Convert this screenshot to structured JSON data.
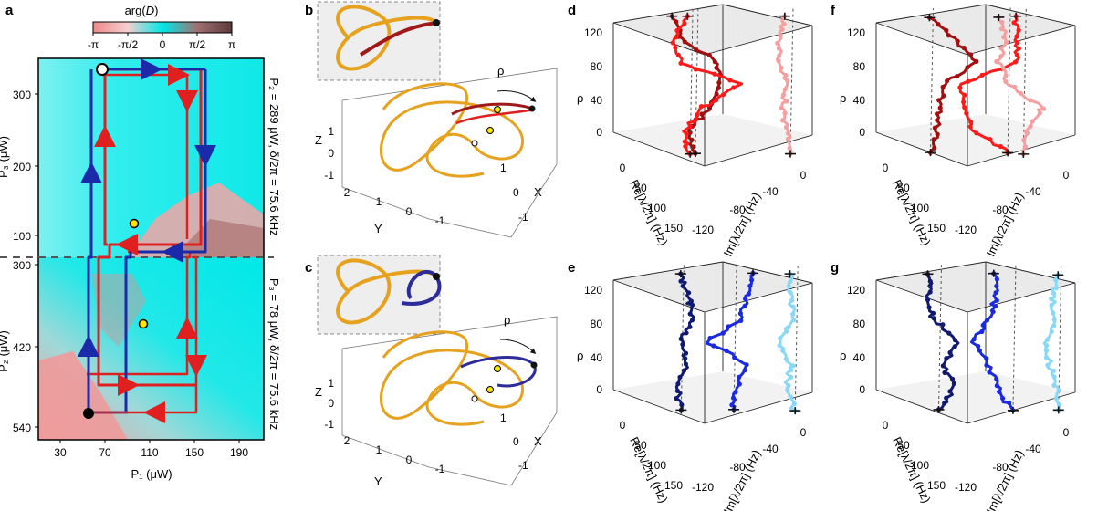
{
  "panels": {
    "a": "a",
    "b": "b",
    "c": "c",
    "d": "d",
    "e": "e",
    "f": "f",
    "g": "g"
  },
  "colorbar": {
    "title_prefix": "arg(",
    "title_var": "D",
    "title_suffix": ")",
    "ticks": [
      "-π",
      "-π/2",
      "0",
      "π/2",
      "π"
    ],
    "colors": [
      "#ee8888",
      "#f5c8c8",
      "#00e8e8",
      "#a07070",
      "#5a3a3a"
    ]
  },
  "panel_a": {
    "xlabel": "P₁ (μW)",
    "xticks": [
      "30",
      "70",
      "110",
      "150",
      "190"
    ],
    "top_ylabel": "P₃ (μW)",
    "top_yticks": [
      "300",
      "200",
      "100"
    ],
    "bottom_ylabel": "P₂ (μW)",
    "bottom_yticks": [
      "300",
      "420",
      "540"
    ],
    "top_side_label": "P₂ = 289 μW, δ/2π = 75.6 kHz",
    "bottom_side_label": "P₃ = 78 μW, δ/2π = 75.6 kHz",
    "path_colors": {
      "forward": "#e02020",
      "backward": "#1a2aa8",
      "mixed": "#a03050"
    }
  },
  "panel_3d_knot": {
    "axes": {
      "z": "Z",
      "y": "Y",
      "x": "X",
      "rho": "ρ"
    },
    "z_ticks": [
      "1",
      "0",
      "-1"
    ],
    "y_ticks": [
      "2",
      "1",
      "0",
      "-1"
    ],
    "x_ticks": [
      "1",
      "0",
      "-1"
    ],
    "knot_colors": {
      "gold": "#e6a21e",
      "b_highlight": "#a01818",
      "c_highlight": "#2c2c9a"
    }
  },
  "panel_braid": {
    "rho_label": "ρ",
    "rho_ticks": [
      "120",
      "80",
      "40",
      "0"
    ],
    "re_label": "Re[λ/2π] (Hz)",
    "re_ticks": [
      "0",
      "50",
      "100",
      "150"
    ],
    "im_label": "Im[λ/2π] (Hz)",
    "im_ticks": [
      "0",
      "-40",
      "-80",
      "-120"
    ],
    "series_colors": {
      "d": [
        "#a01010",
        "#ff1a1a",
        "#f5a0a0"
      ],
      "f": [
        "#a01010",
        "#ff1a1a",
        "#f5a0a0"
      ],
      "e": [
        "#101a70",
        "#1a2ae0",
        "#8ad8f8"
      ],
      "g": [
        "#101a70",
        "#1a2ae0",
        "#8ad8f8"
      ]
    }
  }
}
